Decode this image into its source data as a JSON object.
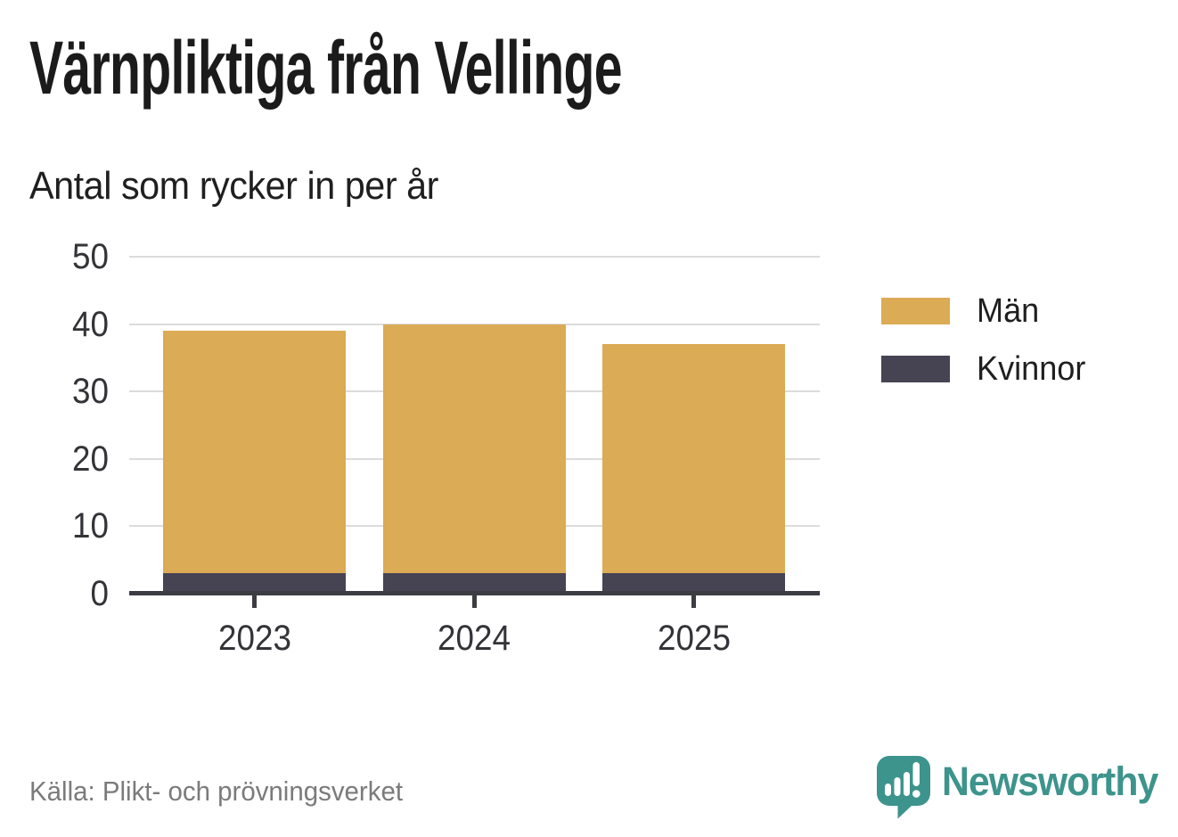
{
  "chart_data": {
    "type": "bar",
    "stacked": true,
    "title": "Värnpliktiga från Vellinge",
    "subtitle": "Antal som rycker in per år",
    "categories": [
      "2023",
      "2024",
      "2025"
    ],
    "series": [
      {
        "name": "Kvinnor",
        "color": "#464353",
        "values": [
          3,
          3,
          3
        ]
      },
      {
        "name": "Män",
        "color": "#DBAB55",
        "values": [
          36,
          37,
          34
        ]
      }
    ],
    "stack_totals": [
      39,
      40,
      37
    ],
    "xlabel": "",
    "ylabel": "",
    "ylim": [
      0,
      50
    ],
    "yticks": [
      0,
      10,
      20,
      30,
      40,
      50
    ],
    "grid": "horizontal",
    "legend_position": "right",
    "legend_order": [
      "Män",
      "Kvinnor"
    ]
  },
  "footer": {
    "source": "Källa: Plikt- och prövningsverket",
    "brand": "Newsworthy"
  },
  "colors": {
    "men_bar": "#DBAB55",
    "women_bar": "#464353",
    "brand_teal": "#3D948C",
    "axis": "#3C3C43",
    "gridline": "#DCDCDC",
    "title_text": "#1B1B1B",
    "axis_label_text": "#333338",
    "source_text": "#7B7B7B"
  }
}
